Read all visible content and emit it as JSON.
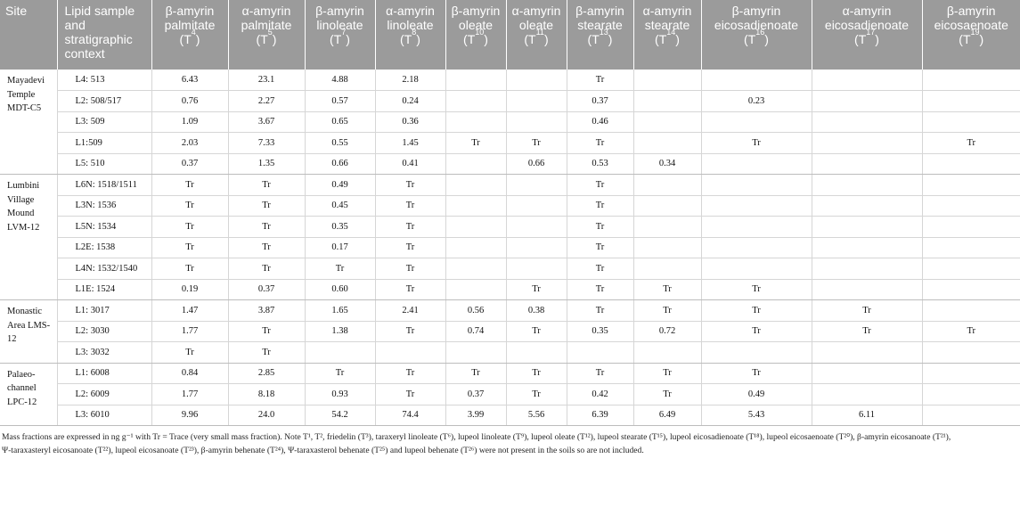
{
  "headers": [
    {
      "main": "Site",
      "sup": "",
      "tail": ""
    },
    {
      "main": "Lipid sample and stratigraphic context",
      "sup": "",
      "tail": ""
    },
    {
      "main": "β-amyrin palmitate (T",
      "sup": "4",
      "tail": ")"
    },
    {
      "main": "α-amyrin palmitate (T",
      "sup": "5",
      "tail": ")"
    },
    {
      "main": "β-amyrin linoleate (T",
      "sup": "7",
      "tail": ")"
    },
    {
      "main": "α-amyrin linoleate (T",
      "sup": "8",
      "tail": ")"
    },
    {
      "main": "β-amyrin oleate (T",
      "sup": "10",
      "tail": ")"
    },
    {
      "main": "α-amyrin oleate (T",
      "sup": "11",
      "tail": ")"
    },
    {
      "main": "β-amyrin stearate (T",
      "sup": "13",
      "tail": ")"
    },
    {
      "main": "α-amyrin stearate (T",
      "sup": "14",
      "tail": ")"
    },
    {
      "main": "β-amyrin eicosadienoate (T",
      "sup": "16",
      "tail": ")"
    },
    {
      "main": "α-amyrin eicosadienoate (T",
      "sup": "17",
      "tail": ")"
    },
    {
      "main": "β-amyrin eicosaenoate (T",
      "sup": "19",
      "tail": ")"
    }
  ],
  "groups": [
    {
      "site": "Mayadevi Temple MDT-C5",
      "rows": [
        [
          "L4: 513",
          "6.43",
          "23.1",
          "4.88",
          "2.18",
          "",
          "",
          "Tr",
          "",
          "",
          "",
          ""
        ],
        [
          "L2: 508/517",
          "0.76",
          "2.27",
          "0.57",
          "0.24",
          "",
          "",
          "0.37",
          "",
          "0.23",
          "",
          ""
        ],
        [
          "L3: 509",
          "1.09",
          "3.67",
          "0.65",
          "0.36",
          "",
          "",
          "0.46",
          "",
          "",
          "",
          ""
        ],
        [
          "L1:509",
          "2.03",
          "7.33",
          "0.55",
          "1.45",
          "Tr",
          "Tr",
          "Tr",
          "",
          "Tr",
          "",
          "Tr"
        ],
        [
          "L5: 510",
          "0.37",
          "1.35",
          "0.66",
          "0.41",
          "",
          "0.66",
          "0.53",
          "0.34",
          "",
          "",
          ""
        ]
      ]
    },
    {
      "site": "Lumbini Village Mound LVM-12",
      "rows": [
        [
          "L6N: 1518/1511",
          "Tr",
          "Tr",
          "0.49",
          "Tr",
          "",
          "",
          "Tr",
          "",
          "",
          "",
          ""
        ],
        [
          "L3N: 1536",
          "Tr",
          "Tr",
          "0.45",
          "Tr",
          "",
          "",
          "Tr",
          "",
          "",
          "",
          ""
        ],
        [
          "L5N: 1534",
          "Tr",
          "Tr",
          "0.35",
          "Tr",
          "",
          "",
          "Tr",
          "",
          "",
          "",
          ""
        ],
        [
          "L2E: 1538",
          "Tr",
          "Tr",
          "0.17",
          "Tr",
          "",
          "",
          "Tr",
          "",
          "",
          "",
          ""
        ],
        [
          "L4N: 1532/1540",
          "Tr",
          "Tr",
          "Tr",
          "Tr",
          "",
          "",
          "Tr",
          "",
          "",
          "",
          ""
        ],
        [
          "L1E: 1524",
          "0.19",
          "0.37",
          "0.60",
          "Tr",
          "",
          "Tr",
          "Tr",
          "Tr",
          "Tr",
          "",
          ""
        ]
      ]
    },
    {
      "site": "Monastic Area LMS-12",
      "rows": [
        [
          "L1: 3017",
          "1.47",
          "3.87",
          "1.65",
          "2.41",
          "0.56",
          "0.38",
          "Tr",
          "Tr",
          "Tr",
          "Tr",
          ""
        ],
        [
          "L2: 3030",
          "1.77",
          "Tr",
          "1.38",
          "Tr",
          "0.74",
          "Tr",
          "0.35",
          "0.72",
          "Tr",
          "Tr",
          "Tr"
        ],
        [
          "L3: 3032",
          "Tr",
          "Tr",
          "",
          "",
          "",
          "",
          "",
          "",
          "",
          "",
          ""
        ]
      ]
    },
    {
      "site": "Palaeo-channel LPC-12",
      "rows": [
        [
          "L1: 6008",
          "0.84",
          "2.85",
          "Tr",
          "Tr",
          "Tr",
          "Tr",
          "Tr",
          "Tr",
          "Tr",
          "",
          ""
        ],
        [
          "L2: 6009",
          "1.77",
          "8.18",
          "0.93",
          "Tr",
          "0.37",
          "Tr",
          "0.42",
          "Tr",
          "0.49",
          "",
          ""
        ],
        [
          "L3: 6010",
          "9.96",
          "24.0",
          "54.2",
          "74.4",
          "3.99",
          "5.56",
          "6.39",
          "6.49",
          "5.43",
          "6.11",
          ""
        ]
      ]
    }
  ],
  "note_line1": "Mass fractions are expressed in ng g⁻¹ with Tr = Trace (very small mass fraction). Note T¹, T², friedelin (T³), taraxeryl linoleate (T⁶), lupeol linoleate (T⁹), lupeol oleate (T¹²), lupeol stearate (T¹⁵), lupeol eicosadienoate (T¹⁸), lupeol eicosaenoate (T²⁰), β-amyrin eicosanoate (T²¹),",
  "note_line2": "Ψ-taraxasteryl eicosanoate (T²²), lupeol eicosanoate (T²³), β-amyrin behenate (T²⁴), Ψ-taraxasterol behenate (T²⁵) and lupeol behenate (T²⁶) were not present in the soils so are not included."
}
